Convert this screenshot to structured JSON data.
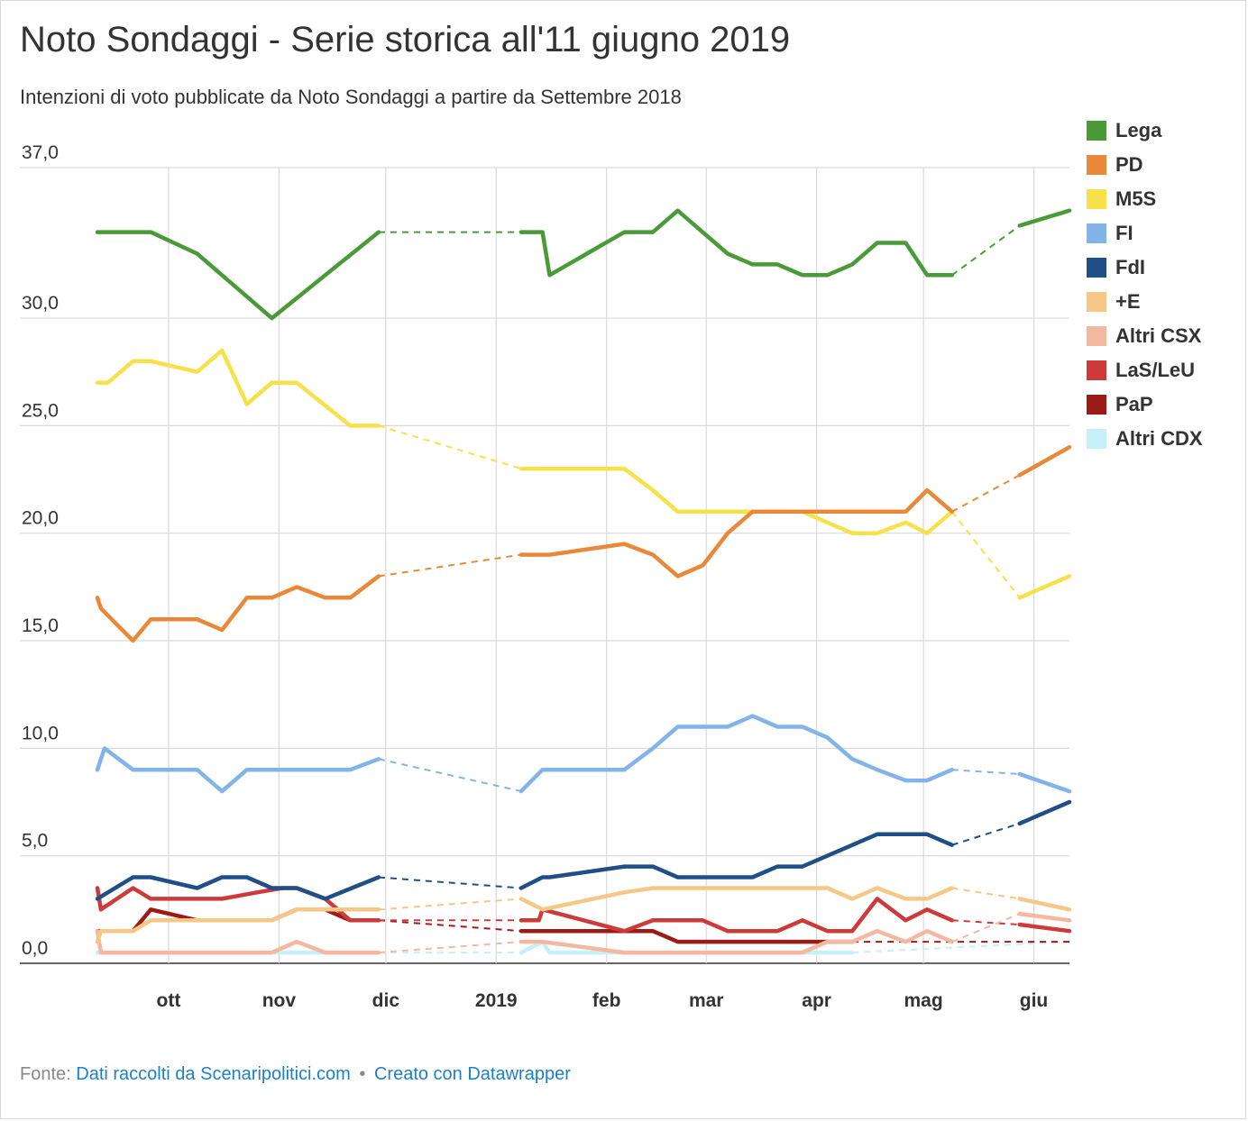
{
  "title": "Noto Sondaggi - Serie storica all'11 giugno 2019",
  "subtitle": "Intenzioni di voto pubblicate da Noto Sondaggi a partire da Settembre 2018",
  "footer": {
    "source_label": "Fonte:",
    "source_link": "Dati raccolti da Scenaripolitici.com",
    "separator": "•",
    "credit_link": "Creato con Datawrapper"
  },
  "chart_data": {
    "type": "line",
    "title": "Noto Sondaggi - Serie storica all'11 giugno 2019",
    "subtitle": "Intenzioni di voto pubblicate da Noto Sondaggi a partire da Settembre 2018",
    "xlabel": "",
    "ylabel": "",
    "xlim": [
      "2018-09-11",
      "2019-06-11"
    ],
    "ylim": [
      0,
      37
    ],
    "y_ticks": [
      {
        "value": 0,
        "label": "0,0"
      },
      {
        "value": 5,
        "label": "5,0"
      },
      {
        "value": 10,
        "label": "10,0"
      },
      {
        "value": 15,
        "label": "15,0"
      },
      {
        "value": 20,
        "label": "20,0"
      },
      {
        "value": 25,
        "label": "25,0"
      },
      {
        "value": 30,
        "label": "30,0"
      },
      {
        "value": 37,
        "label": "37,0"
      }
    ],
    "x_ticks": [
      {
        "date": "2018-10-01",
        "label": "ott"
      },
      {
        "date": "2018-11-01",
        "label": "nov"
      },
      {
        "date": "2018-12-01",
        "label": "dic"
      },
      {
        "date": "2019-01-01",
        "label": "2019"
      },
      {
        "date": "2019-02-01",
        "label": "feb"
      },
      {
        "date": "2019-03-01",
        "label": "mar"
      },
      {
        "date": "2019-04-01",
        "label": "apr"
      },
      {
        "date": "2019-05-01",
        "label": "mag"
      },
      {
        "date": "2019-06-01",
        "label": "giu"
      }
    ],
    "grid": true,
    "legend_position": "right",
    "gap_style": "dashed",
    "series": [
      {
        "name": "Lega",
        "color": "#4a9a3a",
        "points": [
          [
            "2018-09-11",
            34.0
          ],
          [
            "2018-09-21",
            34.0
          ],
          [
            "2018-09-26",
            34.0
          ],
          [
            "2018-10-09",
            33.0
          ],
          [
            "2018-10-30",
            30.0
          ],
          [
            "2018-11-29",
            34.0
          ],
          [
            "2019-01-08",
            34.0
          ],
          [
            "2019-01-14",
            34.0
          ],
          [
            "2019-01-16",
            32.0
          ],
          [
            "2019-02-06",
            34.0
          ],
          [
            "2019-02-14",
            34.0
          ],
          [
            "2019-02-21",
            35.0
          ],
          [
            "2019-03-07",
            33.0
          ],
          [
            "2019-03-14",
            32.5
          ],
          [
            "2019-03-21",
            32.5
          ],
          [
            "2019-03-28",
            32.0
          ],
          [
            "2019-04-04",
            32.0
          ],
          [
            "2019-04-11",
            32.5
          ],
          [
            "2019-04-18",
            33.5
          ],
          [
            "2019-04-26",
            33.5
          ],
          [
            "2019-05-02",
            32.0
          ],
          [
            "2019-05-09",
            32.0
          ],
          [
            "2019-05-28",
            34.3
          ],
          [
            "2019-06-11",
            35.0
          ]
        ],
        "gaps_after": [
          5,
          21
        ]
      },
      {
        "name": "PD",
        "color": "#e98839",
        "points": [
          [
            "2018-09-11",
            17.0
          ],
          [
            "2018-09-12",
            16.5
          ],
          [
            "2018-09-21",
            15.0
          ],
          [
            "2018-09-26",
            16.0
          ],
          [
            "2018-10-09",
            16.0
          ],
          [
            "2018-10-16",
            15.5
          ],
          [
            "2018-10-23",
            17.0
          ],
          [
            "2018-10-30",
            17.0
          ],
          [
            "2018-11-06",
            17.5
          ],
          [
            "2018-11-14",
            17.0
          ],
          [
            "2018-11-21",
            17.0
          ],
          [
            "2018-11-29",
            18.0
          ],
          [
            "2019-01-08",
            19.0
          ],
          [
            "2019-01-16",
            19.0
          ],
          [
            "2019-02-06",
            19.5
          ],
          [
            "2019-02-14",
            19.0
          ],
          [
            "2019-02-21",
            18.0
          ],
          [
            "2019-02-28",
            18.5
          ],
          [
            "2019-03-07",
            20.0
          ],
          [
            "2019-03-14",
            21.0
          ],
          [
            "2019-03-21",
            21.0
          ],
          [
            "2019-03-28",
            21.0
          ],
          [
            "2019-04-04",
            21.0
          ],
          [
            "2019-04-11",
            21.0
          ],
          [
            "2019-04-18",
            21.0
          ],
          [
            "2019-04-26",
            21.0
          ],
          [
            "2019-05-02",
            22.0
          ],
          [
            "2019-05-09",
            21.0
          ],
          [
            "2019-05-28",
            22.7
          ],
          [
            "2019-06-11",
            24.0
          ]
        ],
        "gaps_after": [
          11,
          27
        ]
      },
      {
        "name": "M5S",
        "color": "#f7e14a",
        "points": [
          [
            "2018-09-11",
            27.0
          ],
          [
            "2018-09-14",
            27.0
          ],
          [
            "2018-09-21",
            28.0
          ],
          [
            "2018-09-26",
            28.0
          ],
          [
            "2018-10-09",
            27.5
          ],
          [
            "2018-10-16",
            28.5
          ],
          [
            "2018-10-23",
            26.0
          ],
          [
            "2018-10-30",
            27.0
          ],
          [
            "2018-11-06",
            27.0
          ],
          [
            "2018-11-21",
            25.0
          ],
          [
            "2018-11-29",
            25.0
          ],
          [
            "2019-01-08",
            23.0
          ],
          [
            "2019-01-16",
            23.0
          ],
          [
            "2019-02-06",
            23.0
          ],
          [
            "2019-02-14",
            22.0
          ],
          [
            "2019-02-21",
            21.0
          ],
          [
            "2019-02-28",
            21.0
          ],
          [
            "2019-03-14",
            21.0
          ],
          [
            "2019-03-21",
            21.0
          ],
          [
            "2019-03-28",
            21.0
          ],
          [
            "2019-04-04",
            20.5
          ],
          [
            "2019-04-11",
            20.0
          ],
          [
            "2019-04-18",
            20.0
          ],
          [
            "2019-04-26",
            20.5
          ],
          [
            "2019-05-02",
            20.0
          ],
          [
            "2019-05-09",
            21.0
          ],
          [
            "2019-05-28",
            17.0
          ],
          [
            "2019-06-11",
            18.0
          ]
        ],
        "gaps_after": [
          10,
          25
        ]
      },
      {
        "name": "FI",
        "color": "#82b4ea",
        "points": [
          [
            "2018-09-11",
            9.0
          ],
          [
            "2018-09-13",
            10.0
          ],
          [
            "2018-09-21",
            9.0
          ],
          [
            "2018-10-09",
            9.0
          ],
          [
            "2018-10-16",
            8.0
          ],
          [
            "2018-10-23",
            9.0
          ],
          [
            "2018-10-30",
            9.0
          ],
          [
            "2018-11-21",
            9.0
          ],
          [
            "2018-11-29",
            9.5
          ],
          [
            "2019-01-08",
            8.0
          ],
          [
            "2019-01-14",
            9.0
          ],
          [
            "2019-02-06",
            9.0
          ],
          [
            "2019-02-14",
            10.0
          ],
          [
            "2019-02-21",
            11.0
          ],
          [
            "2019-03-07",
            11.0
          ],
          [
            "2019-03-14",
            11.5
          ],
          [
            "2019-03-21",
            11.0
          ],
          [
            "2019-03-28",
            11.0
          ],
          [
            "2019-04-04",
            10.5
          ],
          [
            "2019-04-11",
            9.5
          ],
          [
            "2019-04-18",
            9.0
          ],
          [
            "2019-04-26",
            8.5
          ],
          [
            "2019-05-02",
            8.5
          ],
          [
            "2019-05-09",
            9.0
          ],
          [
            "2019-05-28",
            8.8
          ],
          [
            "2019-06-11",
            8.0
          ]
        ],
        "gaps_after": [
          8,
          23
        ]
      },
      {
        "name": "FdI",
        "color": "#1f4f86",
        "points": [
          [
            "2018-09-11",
            3.0
          ],
          [
            "2018-09-21",
            4.0
          ],
          [
            "2018-09-26",
            4.0
          ],
          [
            "2018-10-09",
            3.5
          ],
          [
            "2018-10-16",
            4.0
          ],
          [
            "2018-10-23",
            4.0
          ],
          [
            "2018-10-30",
            3.5
          ],
          [
            "2018-11-06",
            3.5
          ],
          [
            "2018-11-14",
            3.0
          ],
          [
            "2018-11-29",
            4.0
          ],
          [
            "2019-01-08",
            3.5
          ],
          [
            "2019-01-14",
            4.0
          ],
          [
            "2019-01-16",
            4.0
          ],
          [
            "2019-02-06",
            4.5
          ],
          [
            "2019-02-14",
            4.5
          ],
          [
            "2019-02-21",
            4.0
          ],
          [
            "2019-03-14",
            4.0
          ],
          [
            "2019-03-21",
            4.5
          ],
          [
            "2019-03-28",
            4.5
          ],
          [
            "2019-04-04",
            5.0
          ],
          [
            "2019-04-18",
            6.0
          ],
          [
            "2019-04-26",
            6.0
          ],
          [
            "2019-05-02",
            6.0
          ],
          [
            "2019-05-09",
            5.5
          ],
          [
            "2019-05-28",
            6.5
          ],
          [
            "2019-06-11",
            7.5
          ]
        ],
        "gaps_after": [
          9,
          23
        ]
      },
      {
        "name": "+E",
        "color": "#f5c887",
        "points": [
          [
            "2018-09-11",
            1.0
          ],
          [
            "2018-09-12",
            1.5
          ],
          [
            "2018-09-21",
            1.5
          ],
          [
            "2018-09-26",
            2.0
          ],
          [
            "2018-10-09",
            2.0
          ],
          [
            "2018-10-30",
            2.0
          ],
          [
            "2018-11-06",
            2.5
          ],
          [
            "2018-11-29",
            2.5
          ],
          [
            "2019-01-08",
            3.0
          ],
          [
            "2019-01-14",
            2.5
          ],
          [
            "2019-02-06",
            3.3
          ],
          [
            "2019-02-14",
            3.5
          ],
          [
            "2019-04-04",
            3.5
          ],
          [
            "2019-04-11",
            3.0
          ],
          [
            "2019-04-18",
            3.5
          ],
          [
            "2019-04-26",
            3.0
          ],
          [
            "2019-05-02",
            3.0
          ],
          [
            "2019-05-09",
            3.5
          ],
          [
            "2019-05-28",
            3.0
          ],
          [
            "2019-06-11",
            2.5
          ]
        ],
        "gaps_after": [
          7,
          17
        ]
      },
      {
        "name": "Altri CSX",
        "color": "#f4b8a1",
        "points": [
          [
            "2018-09-11",
            1.5
          ],
          [
            "2018-09-12",
            0.5
          ],
          [
            "2018-09-21",
            0.5
          ],
          [
            "2018-10-30",
            0.5
          ],
          [
            "2018-11-06",
            1.0
          ],
          [
            "2018-11-14",
            0.5
          ],
          [
            "2018-11-29",
            0.5
          ],
          [
            "2019-01-08",
            1.0
          ],
          [
            "2019-01-14",
            1.0
          ],
          [
            "2019-02-06",
            0.5
          ],
          [
            "2019-03-28",
            0.5
          ],
          [
            "2019-04-04",
            1.0
          ],
          [
            "2019-04-11",
            1.0
          ],
          [
            "2019-04-18",
            1.5
          ],
          [
            "2019-04-26",
            1.0
          ],
          [
            "2019-05-02",
            1.5
          ],
          [
            "2019-05-09",
            1.0
          ],
          [
            "2019-05-28",
            2.3
          ],
          [
            "2019-06-11",
            2.0
          ]
        ],
        "gaps_after": [
          6,
          16
        ]
      },
      {
        "name": "LaS/LeU",
        "color": "#cc3a3a",
        "points": [
          [
            "2018-09-11",
            3.5
          ],
          [
            "2018-09-12",
            2.5
          ],
          [
            "2018-09-21",
            3.5
          ],
          [
            "2018-09-26",
            3.0
          ],
          [
            "2018-10-16",
            3.0
          ],
          [
            "2018-10-26",
            3.3
          ],
          [
            "2018-11-02",
            3.5
          ],
          [
            "2018-11-06",
            3.5
          ],
          [
            "2018-11-14",
            3.0
          ],
          [
            "2018-11-21",
            2.0
          ],
          [
            "2018-11-29",
            2.0
          ],
          [
            "2019-01-08",
            2.0
          ],
          [
            "2019-01-13",
            2.0
          ],
          [
            "2019-01-14",
            2.5
          ],
          [
            "2019-02-06",
            1.5
          ],
          [
            "2019-02-14",
            2.0
          ],
          [
            "2019-02-28",
            2.0
          ],
          [
            "2019-03-07",
            1.5
          ],
          [
            "2019-03-21",
            1.5
          ],
          [
            "2019-03-28",
            2.0
          ],
          [
            "2019-04-04",
            1.5
          ],
          [
            "2019-04-11",
            1.5
          ],
          [
            "2019-04-18",
            3.0
          ],
          [
            "2019-04-26",
            2.0
          ],
          [
            "2019-05-02",
            2.5
          ],
          [
            "2019-05-09",
            2.0
          ],
          [
            "2019-05-28",
            1.8
          ],
          [
            "2019-06-11",
            1.5
          ]
        ],
        "gaps_after": [
          10,
          25
        ]
      },
      {
        "name": "PaP",
        "color": "#9b1b17",
        "points": [
          [
            "2018-09-11",
            1.5
          ],
          [
            "2018-09-21",
            1.5
          ],
          [
            "2018-09-26",
            2.5
          ],
          [
            "2018-10-09",
            2.0
          ],
          [
            "2018-10-30",
            2.0
          ],
          [
            "2018-11-06",
            2.5
          ],
          [
            "2018-11-14",
            2.5
          ],
          [
            "2018-11-21",
            2.0
          ],
          [
            "2018-11-29",
            2.0
          ],
          [
            "2019-01-08",
            1.5
          ],
          [
            "2019-02-14",
            1.5
          ],
          [
            "2019-02-21",
            1.0
          ],
          [
            "2019-04-11",
            1.0
          ],
          [
            "2019-06-11",
            1.0
          ]
        ],
        "gaps_after": [
          8,
          12
        ]
      },
      {
        "name": "Altri CDX",
        "color": "#c5f0f7",
        "points": [
          [
            "2018-09-11",
            0.5
          ],
          [
            "2018-11-29",
            0.5
          ],
          [
            "2019-01-08",
            0.5
          ],
          [
            "2019-01-14",
            1.0
          ],
          [
            "2019-01-16",
            0.5
          ],
          [
            "2019-04-11",
            0.5
          ],
          [
            "2019-06-11",
            1.0
          ]
        ],
        "gaps_after": [
          1,
          5
        ]
      }
    ]
  }
}
